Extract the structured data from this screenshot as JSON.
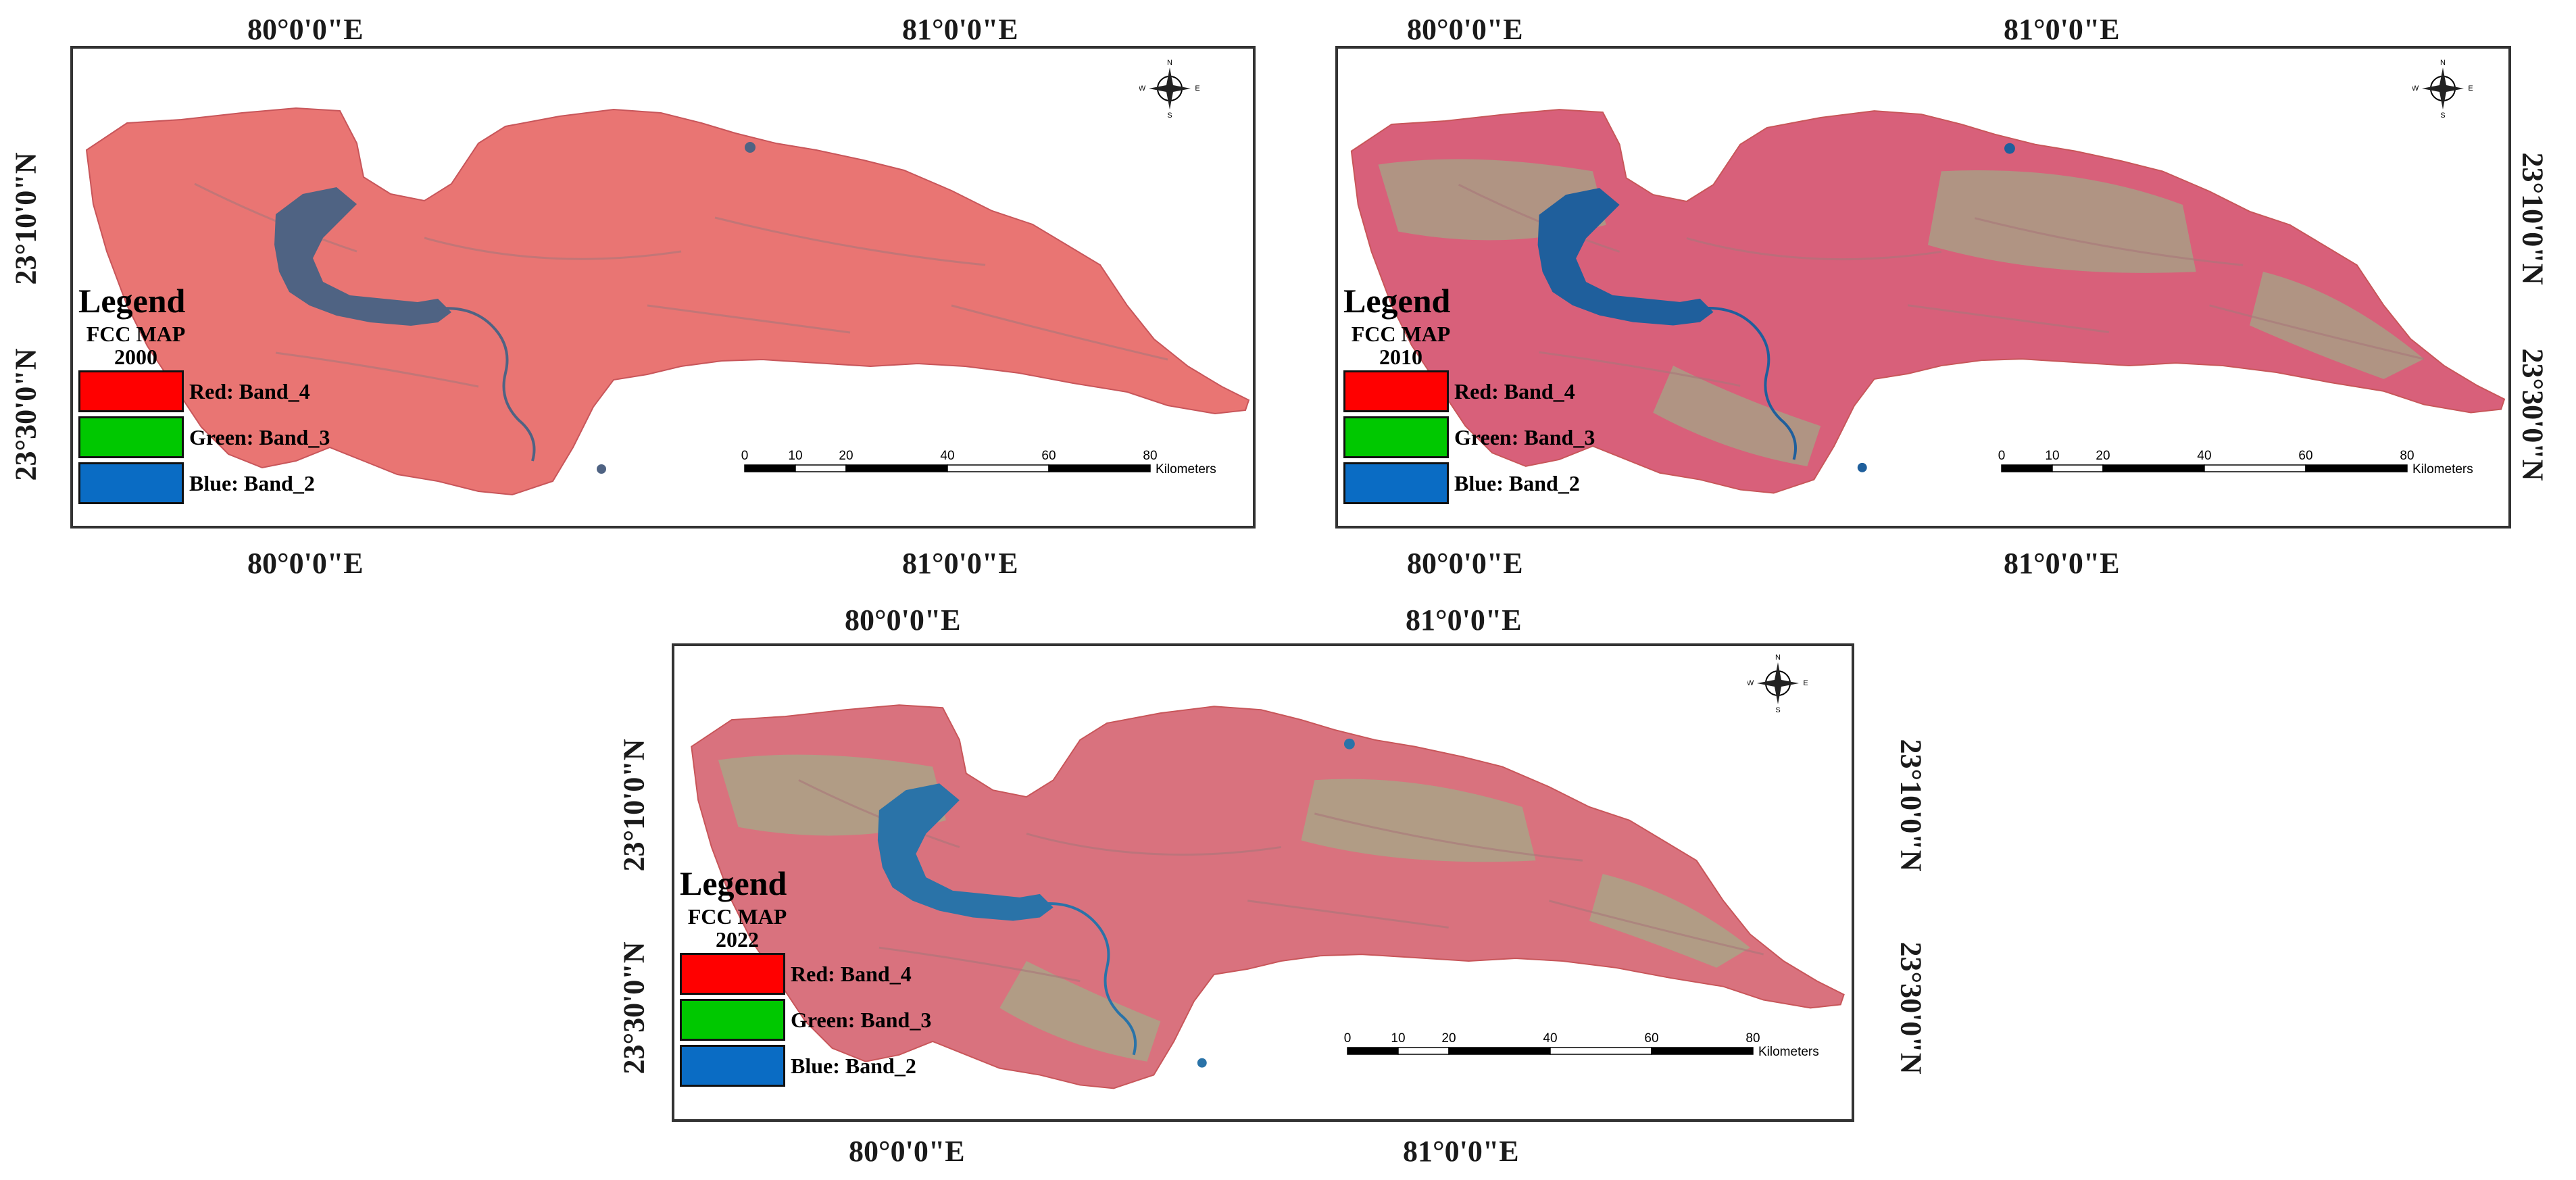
{
  "panels": [
    {
      "id": "2000",
      "top_labels": [
        "80°0'0\"E",
        "81°0'0\"E"
      ],
      "bottom_labels": [
        "80°0'0\"E",
        "81°0'0\"E"
      ],
      "left_labels": [
        "23°10'0\"N",
        "23°30'0\"N"
      ],
      "right_labels": [],
      "legend_title": "Legend",
      "legend_map": "FCC  MAP",
      "legend_year": "2000",
      "land_color": "#e97573",
      "water_color": "#4f6383"
    },
    {
      "id": "2010",
      "top_labels": [
        "80°0'0\"E",
        "81°0'0\"E"
      ],
      "bottom_labels": [
        "80°0'0\"E",
        "81°0'0\"E"
      ],
      "left_labels": [],
      "right_labels": [
        "23°10'0\"N",
        "23°30'0\"N"
      ],
      "legend_title": "Legend",
      "legend_map": "FCC  MAP",
      "legend_year": "2010",
      "land_color": "#d8607a",
      "water_color": "#1f5f9c"
    },
    {
      "id": "2022",
      "top_labels": [
        "80°0'0\"E",
        "81°0'0\"E"
      ],
      "bottom_labels": [
        "80°0'0\"E",
        "81°0'0\"E"
      ],
      "left_labels": [
        "23°10'0\"N",
        "23°30'0\"N"
      ],
      "right_labels": [
        "23°10'0\"N",
        "23°30'0\"N"
      ],
      "legend_title": "Legend",
      "legend_map": "FCC  MAP",
      "legend_year": "2022",
      "land_color": "#d9727e",
      "water_color": "#2a73a8"
    }
  ],
  "legend_entries": [
    {
      "label": "Red:  Band_4",
      "color": "#ff0000"
    },
    {
      "label": "Green:  Band_3",
      "color": "#00c800"
    },
    {
      "label": "Blue:  Band_2",
      "color": "#0a6cc4"
    }
  ],
  "scale": {
    "ticks": [
      "0",
      "10",
      "20",
      "40",
      "60",
      "80"
    ],
    "unit": "Kilometers"
  },
  "north_arrow": {
    "N": "N",
    "S": "S",
    "E": "E",
    "W": "W",
    "icon": "north-arrow-icon"
  }
}
